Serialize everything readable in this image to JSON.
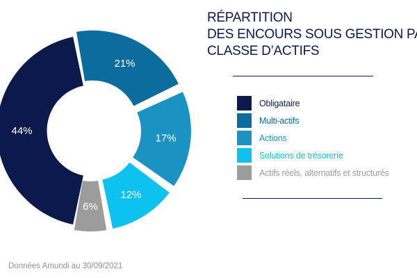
{
  "title_lines": [
    "RÉPARTITION",
    "DES ENCOURS SOUS GESTION PAR",
    "CLASSE D’ACTIFS"
  ],
  "source_note": "Données Amundi au 30/09/2021",
  "chart_data": {
    "type": "pie",
    "title": "RÉPARTITION DES ENCOURS SOUS GESTION PAR CLASSE D’ACTIFS",
    "donut": true,
    "unit": "%",
    "legend_position": "right",
    "categories": [
      "Obligataire",
      "Multi-actifs",
      "Actions",
      "Solutions de trésorerie",
      "Actifs réels, alternatifs et structurés"
    ],
    "values": [
      44,
      21,
      17,
      12,
      6
    ],
    "labels": [
      "44%",
      "21%",
      "17%",
      "12%",
      "6%"
    ],
    "colors": [
      "#0b1a4b",
      "#0c6c9b",
      "#1a93c2",
      "#0dc2ee",
      "#9c9c9c"
    ],
    "legend_text_colors": [
      "#0b1a4b",
      "#0c6c9b",
      "#1a93c2",
      "#0dc2ee",
      "#9c9c9c"
    ],
    "exploded": [
      false,
      true,
      true,
      true,
      true
    ]
  }
}
